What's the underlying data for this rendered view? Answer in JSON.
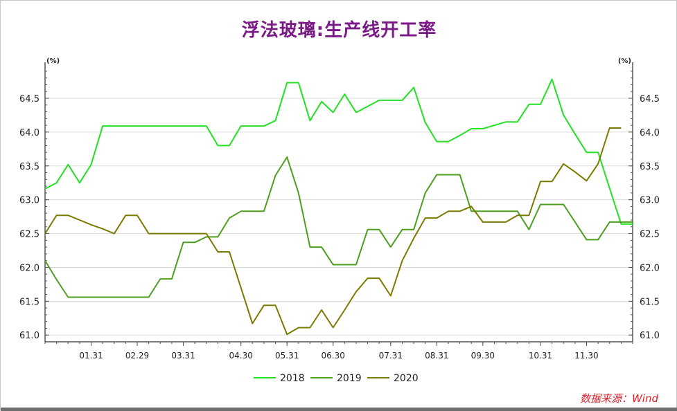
{
  "page": {
    "title": "浮法玻璃:生产线开工率",
    "source": "数据来源：Wind"
  },
  "chart_data": {
    "type": "line",
    "title": "浮法玻璃:生产线开工率",
    "unit_left": "(%)",
    "unit_right": "(%)",
    "ylim": [
      60.9,
      64.95
    ],
    "yticks": [
      61.0,
      61.5,
      62.0,
      62.5,
      63.0,
      63.5,
      64.0,
      64.5
    ],
    "ytick_labels": [
      "61.0",
      "61.5",
      "62.0",
      "62.5",
      "63.0",
      "63.5",
      "64.0",
      "64.5"
    ],
    "xlim": [
      1,
      52
    ],
    "xticks": [
      5,
      9,
      13,
      18,
      22,
      26,
      31,
      35,
      39,
      44,
      48
    ],
    "xtick_labels": [
      "01.31",
      "02.29",
      "03.31",
      "04.30",
      "05.31",
      "06.30",
      "07.31",
      "08.31",
      "09.30",
      "10.31",
      "11.30"
    ],
    "grid": true,
    "legend_position": "bottom",
    "series": [
      {
        "name": "2018",
        "color": "#22e022",
        "x": [
          1,
          2,
          3,
          4,
          5,
          6,
          7,
          8,
          9,
          10,
          11,
          12,
          13,
          14,
          15,
          16,
          17,
          18,
          19,
          20,
          21,
          22,
          23,
          24,
          25,
          26,
          27,
          28,
          29,
          30,
          31,
          32,
          33,
          34,
          35,
          36,
          37,
          38,
          39,
          40,
          41,
          42,
          43,
          44,
          45,
          46,
          47,
          48,
          49,
          50,
          51,
          52
        ],
        "values": [
          63.16,
          63.25,
          63.52,
          63.25,
          63.52,
          64.09,
          64.09,
          64.09,
          64.09,
          64.09,
          64.09,
          64.09,
          64.09,
          64.09,
          64.09,
          63.8,
          63.8,
          64.09,
          64.09,
          64.09,
          64.17,
          64.73,
          64.73,
          64.17,
          64.45,
          64.29,
          64.56,
          64.29,
          64.38,
          64.47,
          64.47,
          64.47,
          64.66,
          64.14,
          63.86,
          63.86,
          63.95,
          64.05,
          64.05,
          64.1,
          64.15,
          64.15,
          64.41,
          64.41,
          64.78,
          64.25,
          63.97,
          63.7,
          63.7,
          63.17,
          62.64,
          62.64
        ]
      },
      {
        "name": "2019",
        "color": "#4e9e1e",
        "x": [
          1,
          2,
          3,
          4,
          5,
          6,
          7,
          8,
          9,
          10,
          11,
          12,
          13,
          14,
          15,
          16,
          17,
          18,
          19,
          20,
          21,
          22,
          23,
          24,
          25,
          26,
          27,
          28,
          29,
          30,
          31,
          32,
          33,
          34,
          35,
          36,
          37,
          38,
          39,
          40,
          41,
          42,
          43,
          44,
          45,
          46,
          47,
          48,
          49,
          50,
          51,
          52
        ],
        "values": [
          62.1,
          61.82,
          61.56,
          61.56,
          61.56,
          61.56,
          61.56,
          61.56,
          61.56,
          61.56,
          61.83,
          61.83,
          62.37,
          62.37,
          62.45,
          62.45,
          62.73,
          62.83,
          62.83,
          62.83,
          63.36,
          63.63,
          63.1,
          62.3,
          62.3,
          62.04,
          62.04,
          62.04,
          62.56,
          62.56,
          62.3,
          62.56,
          62.56,
          63.1,
          63.37,
          63.37,
          63.37,
          62.83,
          62.83,
          62.83,
          62.83,
          62.83,
          62.56,
          62.93,
          62.93,
          62.93,
          62.67,
          62.41,
          62.41,
          62.67,
          62.67,
          62.67
        ]
      },
      {
        "name": "2020",
        "color": "#7a7a00",
        "x": [
          1,
          2,
          3,
          4,
          5,
          6,
          7,
          8,
          9,
          10,
          11,
          12,
          13,
          14,
          15,
          16,
          17,
          18,
          19,
          20,
          21,
          22,
          23,
          24,
          25,
          26,
          27,
          28,
          29,
          30,
          31,
          32,
          33,
          34,
          35,
          36,
          37,
          38,
          39,
          40,
          41,
          42,
          43,
          44,
          45,
          46,
          47,
          48,
          49,
          50,
          51
        ],
        "values": [
          62.5,
          62.77,
          62.77,
          62.7,
          62.63,
          62.57,
          62.5,
          62.77,
          62.77,
          62.5,
          62.5,
          62.5,
          62.5,
          62.5,
          62.5,
          62.23,
          62.23,
          61.7,
          61.17,
          61.44,
          61.44,
          61.01,
          61.11,
          61.11,
          61.37,
          61.11,
          61.37,
          61.64,
          61.84,
          61.84,
          61.58,
          62.1,
          62.43,
          62.73,
          62.73,
          62.83,
          62.83,
          62.9,
          62.67,
          62.67,
          62.67,
          62.77,
          62.77,
          63.27,
          63.27,
          63.53,
          63.41,
          63.28,
          63.53,
          64.06,
          64.06
        ]
      }
    ]
  }
}
